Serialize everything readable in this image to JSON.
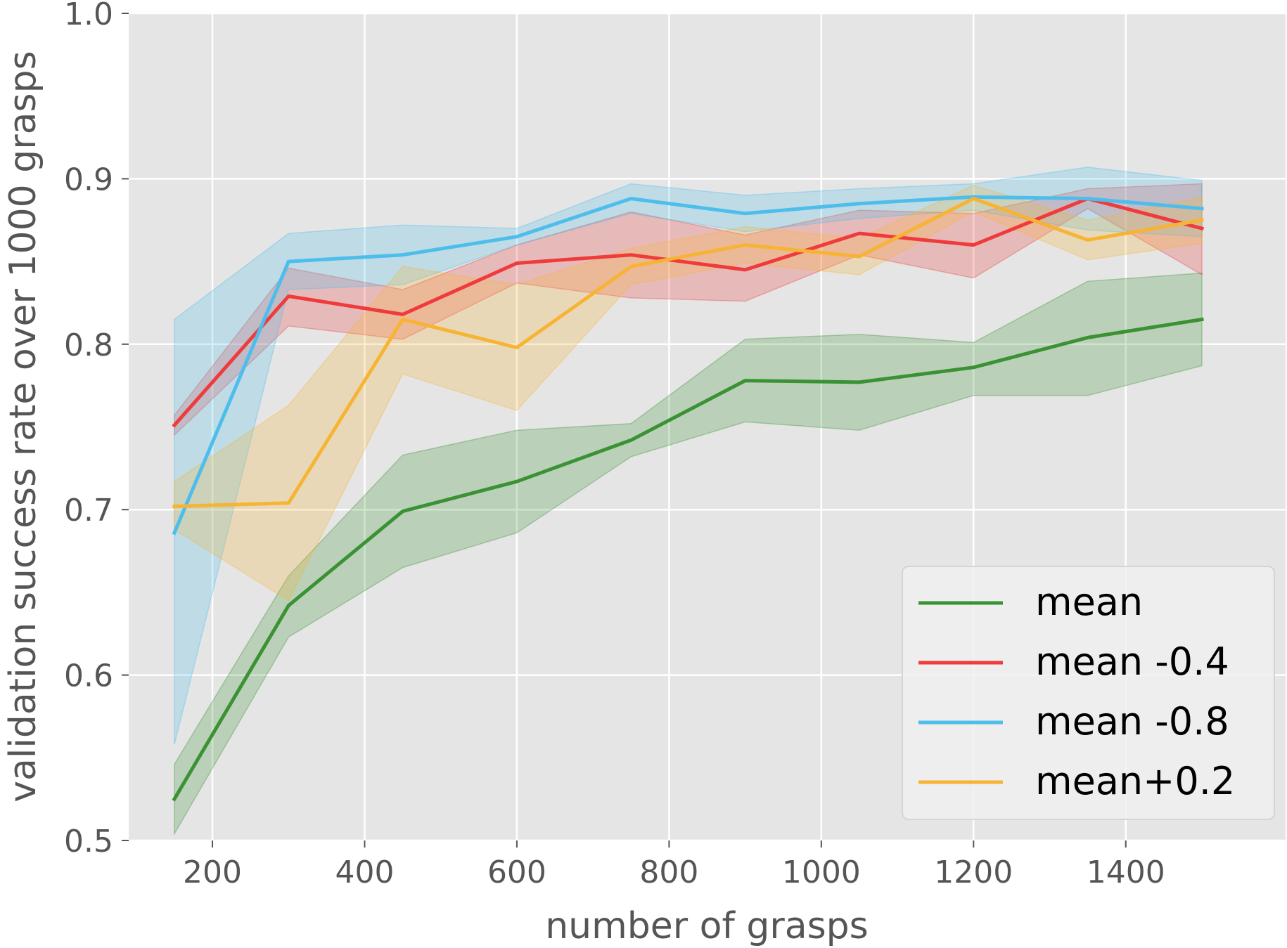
{
  "chart_data": {
    "type": "line",
    "title": "",
    "xlabel": "number of grasps",
    "ylabel": "validation success rate over 1000 grasps",
    "xlim": [
      90,
      1610
    ],
    "ylim": [
      0.5,
      1.0
    ],
    "xticks": [
      200,
      400,
      600,
      800,
      1000,
      1200,
      1400
    ],
    "yticks": [
      0.5,
      0.6,
      0.7,
      0.8,
      0.9,
      1.0
    ],
    "xtick_labels": [
      "200",
      "400",
      "600",
      "800",
      "1000",
      "1200",
      "1400"
    ],
    "ytick_labels": [
      "0.5",
      "0.6",
      "0.7",
      "0.8",
      "0.9",
      "1.0"
    ],
    "grid": true,
    "legend_position": "lower-right",
    "x": [
      150,
      300,
      450,
      600,
      750,
      900,
      1050,
      1200,
      1350,
      1500
    ],
    "series": [
      {
        "name": "mean",
        "color": "#3a9234",
        "values": [
          0.525,
          0.642,
          0.699,
          0.717,
          0.742,
          0.778,
          0.777,
          0.786,
          0.804,
          0.815
        ],
        "upper": [
          0.546,
          0.66,
          0.733,
          0.748,
          0.752,
          0.803,
          0.806,
          0.801,
          0.838,
          0.843
        ],
        "lower": [
          0.504,
          0.623,
          0.665,
          0.686,
          0.732,
          0.753,
          0.748,
          0.769,
          0.769,
          0.787
        ]
      },
      {
        "name": "mean -0.4",
        "color": "#ef3b3b",
        "values": [
          0.751,
          0.829,
          0.818,
          0.849,
          0.854,
          0.845,
          0.867,
          0.86,
          0.888,
          0.87
        ],
        "upper": [
          0.757,
          0.846,
          0.833,
          0.86,
          0.88,
          0.866,
          0.881,
          0.879,
          0.894,
          0.897
        ],
        "lower": [
          0.745,
          0.811,
          0.803,
          0.837,
          0.828,
          0.826,
          0.854,
          0.84,
          0.882,
          0.842
        ]
      },
      {
        "name": "mean -0.8",
        "color": "#4dbeec",
        "values": [
          0.686,
          0.85,
          0.854,
          0.865,
          0.888,
          0.879,
          0.885,
          0.889,
          0.888,
          0.882
        ],
        "upper": [
          0.815,
          0.867,
          0.872,
          0.87,
          0.897,
          0.89,
          0.894,
          0.897,
          0.907,
          0.899
        ],
        "lower": [
          0.558,
          0.833,
          0.836,
          0.86,
          0.879,
          0.868,
          0.876,
          0.881,
          0.869,
          0.865
        ]
      },
      {
        "name": "mean+0.2",
        "color": "#f7b434",
        "values": [
          0.702,
          0.704,
          0.815,
          0.798,
          0.847,
          0.86,
          0.853,
          0.888,
          0.863,
          0.875
        ],
        "upper": [
          0.717,
          0.763,
          0.847,
          0.836,
          0.858,
          0.871,
          0.864,
          0.896,
          0.875,
          0.889
        ],
        "lower": [
          0.688,
          0.645,
          0.782,
          0.76,
          0.836,
          0.849,
          0.842,
          0.88,
          0.851,
          0.861
        ]
      }
    ]
  }
}
